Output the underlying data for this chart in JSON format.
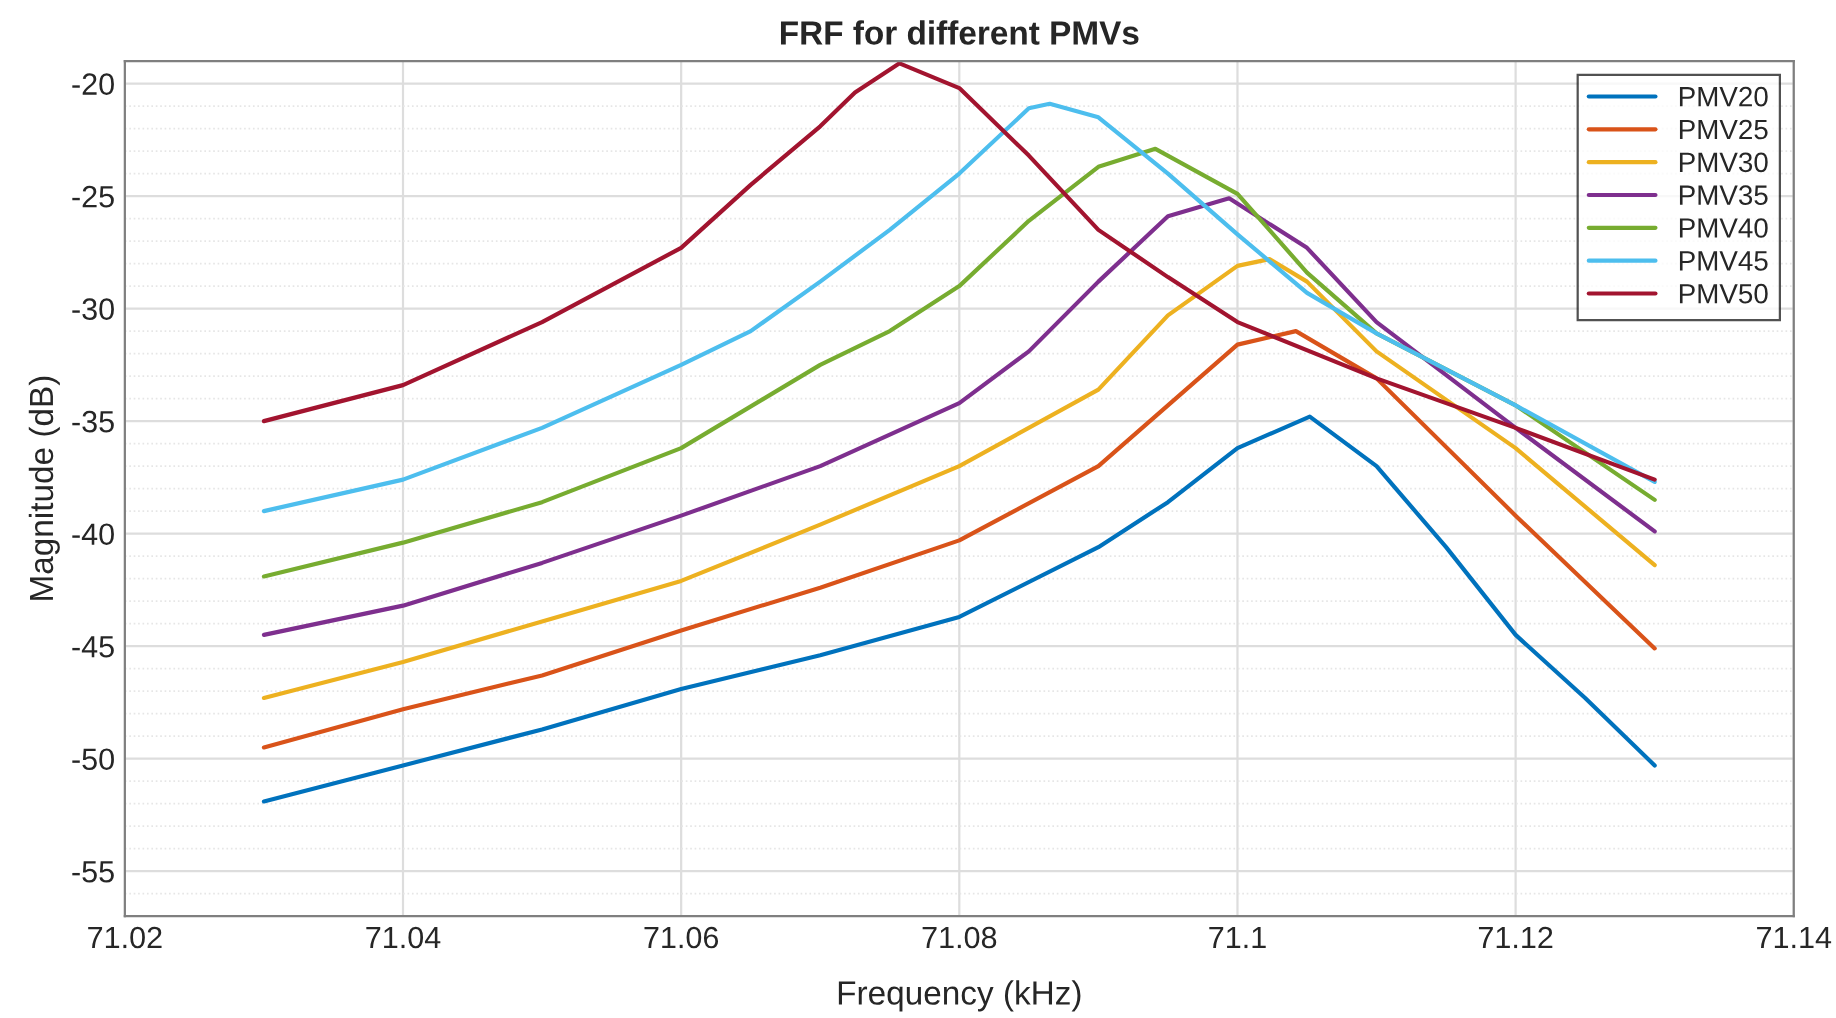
{
  "chart_data": {
    "type": "line",
    "title": "FRF for different PMVs",
    "xlabel": "Frequency (kHz)",
    "ylabel": "Magnitude (dB)",
    "xlim": [
      71.02,
      71.14
    ],
    "xticks": [
      71.02,
      71.04,
      71.06,
      71.08,
      71.1,
      71.12,
      71.14
    ],
    "ylim": [
      -57,
      -19
    ],
    "yticks": [
      -55,
      -50,
      -45,
      -40,
      -35,
      -30,
      -25,
      -20
    ],
    "grid": true,
    "legend": "top right",
    "line_style": "solid",
    "series": [
      {
        "name": "PMV20",
        "color": "#0072bd",
        "x": [
          71.03,
          71.04,
          71.05,
          71.06,
          71.07,
          71.08,
          71.09,
          71.095,
          71.1,
          71.1052,
          71.11,
          71.115,
          71.12,
          71.125,
          71.13
        ],
        "values": [
          -51.9,
          -50.3,
          -48.7,
          -46.9,
          -45.4,
          -43.7,
          -40.6,
          -38.6,
          -36.2,
          -34.8,
          -37.0,
          -40.6,
          -44.5,
          -47.3,
          -50.3
        ]
      },
      {
        "name": "PMV25",
        "color": "#d95319",
        "x": [
          71.03,
          71.04,
          71.05,
          71.06,
          71.07,
          71.08,
          71.09,
          71.095,
          71.1,
          71.1042,
          71.11,
          71.12,
          71.13
        ],
        "values": [
          -49.5,
          -47.8,
          -46.3,
          -44.3,
          -42.4,
          -40.3,
          -37.0,
          -34.3,
          -31.6,
          -31.0,
          -33.1,
          -39.2,
          -45.1
        ]
      },
      {
        "name": "PMV30",
        "color": "#edb120",
        "x": [
          71.03,
          71.04,
          71.05,
          71.06,
          71.07,
          71.08,
          71.09,
          71.095,
          71.1,
          71.1023,
          71.105,
          71.11,
          71.12,
          71.13
        ],
        "values": [
          -47.3,
          -45.7,
          -43.9,
          -42.1,
          -39.6,
          -37.0,
          -33.6,
          -30.3,
          -28.1,
          -27.8,
          -28.8,
          -31.9,
          -36.2,
          -41.4
        ]
      },
      {
        "name": "PMV35",
        "color": "#7e2f8e",
        "x": [
          71.03,
          71.04,
          71.05,
          71.06,
          71.07,
          71.08,
          71.085,
          71.09,
          71.095,
          71.0994,
          71.105,
          71.11,
          71.12,
          71.13
        ],
        "values": [
          -44.5,
          -43.2,
          -41.3,
          -39.2,
          -37.0,
          -34.2,
          -31.9,
          -28.8,
          -25.9,
          -25.1,
          -27.3,
          -30.6,
          -35.3,
          -39.9
        ]
      },
      {
        "name": "PMV40",
        "color": "#77ac30",
        "x": [
          71.03,
          71.04,
          71.05,
          71.06,
          71.07,
          71.075,
          71.08,
          71.085,
          71.09,
          71.0941,
          71.1,
          71.105,
          71.11,
          71.12,
          71.13
        ],
        "values": [
          -41.9,
          -40.4,
          -38.6,
          -36.2,
          -32.5,
          -31.0,
          -29.0,
          -26.1,
          -23.7,
          -22.9,
          -24.9,
          -28.4,
          -31.1,
          -34.3,
          -38.5
        ]
      },
      {
        "name": "PMV45",
        "color": "#4dbeee",
        "x": [
          71.03,
          71.04,
          71.05,
          71.06,
          71.065,
          71.07,
          71.075,
          71.08,
          71.085,
          71.0865,
          71.09,
          71.095,
          71.1,
          71.105,
          71.11,
          71.12,
          71.13
        ],
        "values": [
          -39.0,
          -37.6,
          -35.3,
          -32.5,
          -31.0,
          -28.8,
          -26.5,
          -24.0,
          -21.1,
          -20.9,
          -21.5,
          -24.0,
          -26.7,
          -29.3,
          -31.1,
          -34.3,
          -37.7
        ]
      },
      {
        "name": "PMV50",
        "color": "#a2142f",
        "x": [
          71.03,
          71.04,
          71.05,
          71.06,
          71.065,
          71.07,
          71.0725,
          71.0757,
          71.08,
          71.085,
          71.09,
          71.095,
          71.1,
          71.11,
          71.12,
          71.13
        ],
        "values": [
          -35.0,
          -33.4,
          -30.6,
          -27.3,
          -24.5,
          -21.9,
          -20.4,
          -19.1,
          -20.2,
          -23.2,
          -26.5,
          -28.6,
          -30.6,
          -33.1,
          -35.3,
          -37.6
        ]
      }
    ]
  }
}
